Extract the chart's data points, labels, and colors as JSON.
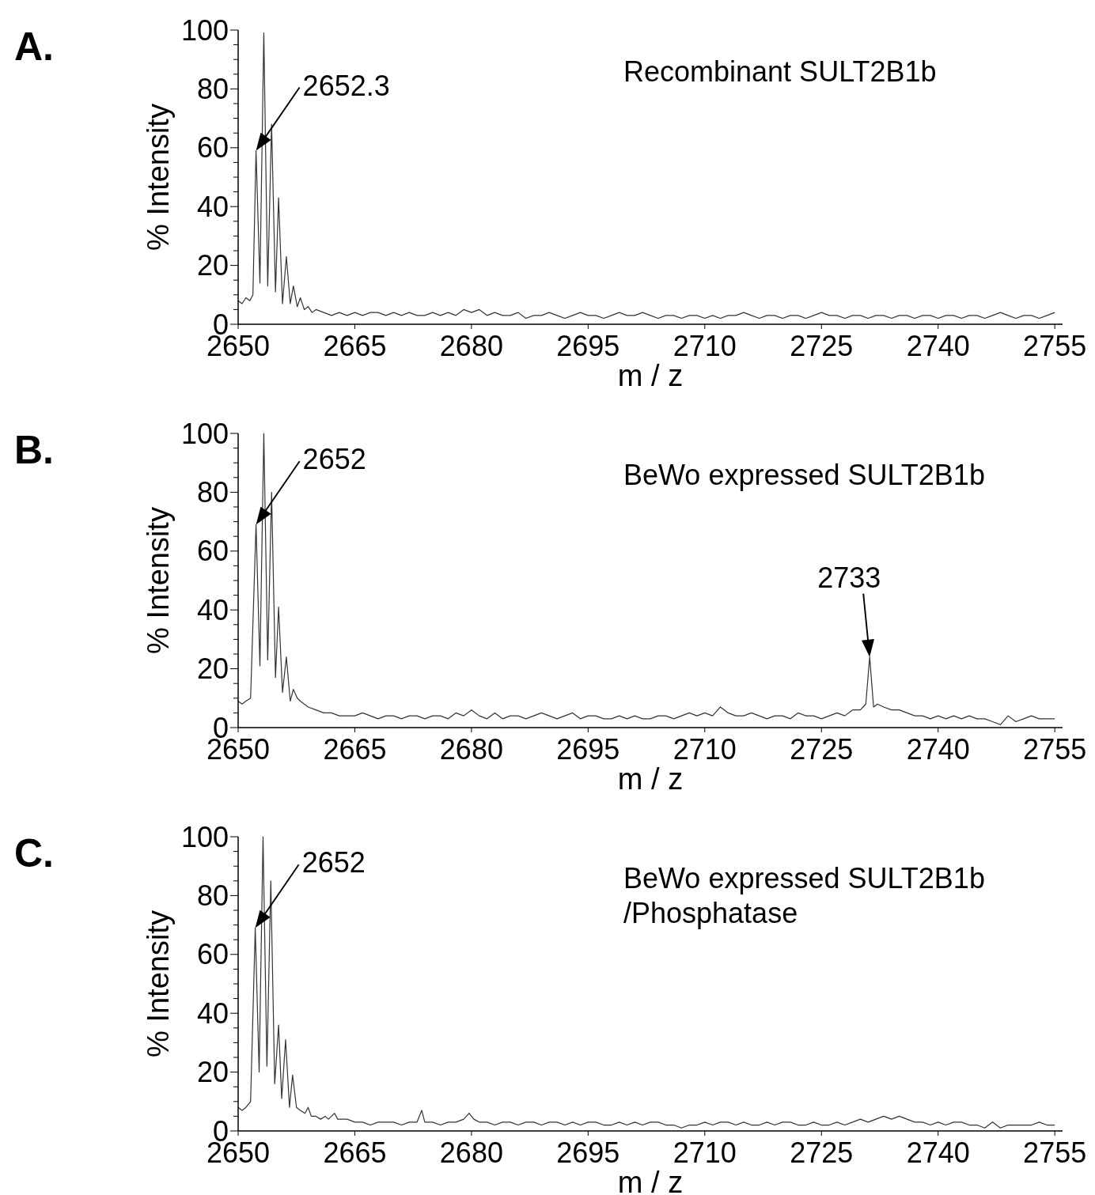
{
  "chart_data": [
    {
      "type": "line",
      "title": "A.",
      "subtitle": "Recombinant SULT2B1b",
      "xlabel": "m / z",
      "ylabel": "% Intensity",
      "xlim": [
        2650,
        2756
      ],
      "ylim": [
        0,
        100
      ],
      "xticks": [
        2650,
        2665,
        2680,
        2695,
        2710,
        2725,
        2740,
        2755
      ],
      "yticks": [
        0,
        {
          "value": 5,
          "label": null
        },
        {
          "value": 10,
          "label": null
        },
        {
          "value": 15,
          "label": null
        },
        20,
        {
          "value": 25,
          "label": null
        },
        {
          "value": 30,
          "label": null
        },
        {
          "value": 35,
          "label": null
        },
        40,
        {
          "value": 45,
          "label": null
        },
        {
          "value": 50,
          "label": null
        },
        {
          "value": 55,
          "label": null
        },
        60,
        {
          "value": 65,
          "label": null
        },
        {
          "value": 70,
          "label": null
        },
        {
          "value": 75,
          "label": null
        },
        80,
        {
          "value": 85,
          "label": null
        },
        {
          "value": 90,
          "label": null
        },
        {
          "value": 95,
          "label": null
        },
        100
      ],
      "annotations": [
        {
          "text": "2652.3",
          "x": 2652.3,
          "y": 59
        }
      ],
      "series": [
        {
          "color": "#333333",
          "x": [
            2650,
            2650.5,
            2651,
            2651.5,
            2651.9,
            2652.3,
            2652.8,
            2653.3,
            2653.8,
            2654.3,
            2654.8,
            2655.2,
            2655.7,
            2656.2,
            2656.7,
            2657.1,
            2657.6,
            2658,
            2658.5,
            2659,
            2659.5,
            2660,
            2661,
            2662,
            2663,
            2664,
            2665,
            2666,
            2667,
            2668,
            2669,
            2670,
            2671,
            2672,
            2673,
            2674,
            2675,
            2676,
            2677,
            2678,
            2679,
            2680,
            2681,
            2682,
            2683,
            2684,
            2685,
            2686,
            2687,
            2688,
            2689,
            2690,
            2691,
            2692,
            2693,
            2694,
            2695,
            2696,
            2697,
            2698,
            2699,
            2700,
            2701,
            2702,
            2703,
            2704,
            2705,
            2706,
            2707,
            2708,
            2709,
            2710,
            2711,
            2712,
            2713,
            2714,
            2715,
            2716,
            2717,
            2718,
            2719,
            2720,
            2721,
            2722,
            2723,
            2724,
            2725,
            2726,
            2727,
            2728,
            2729,
            2730,
            2731,
            2732,
            2733,
            2734,
            2735,
            2736,
            2737,
            2738,
            2739,
            2740,
            2741,
            2742,
            2743,
            2744,
            2745,
            2746,
            2747,
            2748,
            2749,
            2750,
            2751,
            2752,
            2753,
            2754,
            2755
          ],
          "values": [
            8,
            7,
            9,
            8,
            10,
            59,
            14,
            99,
            13,
            68,
            11,
            43,
            7,
            23,
            7,
            13,
            6,
            9,
            5,
            6,
            4,
            5,
            4,
            3,
            4,
            3,
            4,
            3,
            4,
            4,
            3,
            4,
            3,
            4,
            3,
            3,
            4,
            3,
            4,
            3,
            5,
            4,
            5,
            3,
            4,
            3,
            3,
            4,
            2,
            3,
            3,
            4,
            3,
            2,
            3,
            4,
            3,
            3,
            2,
            3,
            4,
            3,
            3,
            4,
            3,
            2,
            3,
            3,
            2,
            3,
            3,
            2,
            3,
            2,
            3,
            3,
            4,
            3,
            2,
            3,
            3,
            2,
            3,
            3,
            2,
            3,
            4,
            3,
            3,
            2,
            3,
            3,
            2,
            3,
            3,
            2,
            3,
            3,
            2,
            3,
            3,
            2,
            3,
            3,
            2,
            3,
            3,
            2,
            3,
            4,
            3,
            2,
            3,
            3,
            2,
            3,
            4
          ]
        }
      ]
    },
    {
      "type": "line",
      "title": "B.",
      "subtitle": "BeWo expressed SULT2B1b",
      "xlabel": "m / z",
      "ylabel": "% Intensity",
      "xlim": [
        2650,
        2756
      ],
      "ylim": [
        0,
        100
      ],
      "xticks": [
        2650,
        2665,
        2680,
        2695,
        2710,
        2725,
        2740,
        2755
      ],
      "yticks": [
        0,
        {
          "value": 5,
          "label": null
        },
        {
          "value": 10,
          "label": null
        },
        {
          "value": 15,
          "label": null
        },
        20,
        {
          "value": 25,
          "label": null
        },
        {
          "value": 30,
          "label": null
        },
        {
          "value": 35,
          "label": null
        },
        40,
        {
          "value": 45,
          "label": null
        },
        {
          "value": 50,
          "label": null
        },
        {
          "value": 55,
          "label": null
        },
        60,
        {
          "value": 65,
          "label": null
        },
        {
          "value": 70,
          "label": null
        },
        {
          "value": 75,
          "label": null
        },
        80,
        {
          "value": 85,
          "label": null
        },
        {
          "value": 90,
          "label": null
        },
        {
          "value": 95,
          "label": null
        },
        100
      ],
      "annotations": [
        {
          "text": "2652",
          "x": 2652.3,
          "y": 69
        },
        {
          "text": "2733",
          "x": 2731.2,
          "y": 24
        }
      ],
      "series": [
        {
          "color": "#333333",
          "x": [
            2650,
            2650.5,
            2651,
            2651.6,
            2652.3,
            2652.8,
            2653.3,
            2653.8,
            2654.3,
            2654.8,
            2655.2,
            2655.7,
            2656.2,
            2656.7,
            2657.1,
            2657.6,
            2658,
            2659,
            2660,
            2661,
            2662,
            2663,
            2664,
            2665,
            2666,
            2667,
            2668,
            2669,
            2670,
            2671,
            2672,
            2673,
            2674,
            2675,
            2676,
            2677,
            2678,
            2679,
            2680,
            2681,
            2682,
            2683,
            2684,
            2685,
            2686,
            2687,
            2688,
            2689,
            2690,
            2691,
            2692,
            2693,
            2694,
            2695,
            2696,
            2697,
            2698,
            2699,
            2700,
            2701,
            2702,
            2703,
            2704,
            2705,
            2706,
            2707,
            2708,
            2709,
            2710,
            2711,
            2712,
            2713,
            2714,
            2715,
            2716,
            2717,
            2718,
            2719,
            2720,
            2721,
            2722,
            2723,
            2724,
            2725,
            2726,
            2727,
            2728,
            2729,
            2730,
            2730.7,
            2731.2,
            2731.7,
            2732.2,
            2733,
            2734,
            2735,
            2736,
            2737,
            2738,
            2739,
            2740,
            2741,
            2742,
            2743,
            2744,
            2745,
            2746,
            2747,
            2748,
            2749,
            2750,
            2751,
            2752,
            2753,
            2754,
            2755
          ],
          "values": [
            9,
            8,
            9,
            10,
            69,
            21,
            100,
            23,
            80,
            17,
            41,
            12,
            24,
            9,
            13,
            10,
            9,
            7,
            6,
            5,
            5,
            4,
            4,
            4,
            5,
            4,
            3,
            4,
            4,
            3,
            4,
            4,
            3,
            4,
            4,
            3,
            5,
            4,
            6,
            4,
            3,
            5,
            3,
            4,
            4,
            3,
            4,
            5,
            4,
            3,
            4,
            5,
            3,
            4,
            4,
            3,
            3,
            4,
            3,
            4,
            3,
            3,
            4,
            4,
            3,
            4,
            5,
            4,
            5,
            4,
            7,
            5,
            4,
            4,
            5,
            4,
            3,
            4,
            4,
            3,
            5,
            4,
            4,
            3,
            4,
            5,
            4,
            6,
            6,
            8,
            24,
            7,
            8,
            7,
            6,
            6,
            5,
            4,
            4,
            3,
            4,
            3,
            4,
            3,
            4,
            3,
            3,
            2,
            1,
            4,
            2,
            3,
            4,
            3,
            3,
            3
          ]
        }
      ]
    },
    {
      "type": "line",
      "title": "C.",
      "subtitle": "BeWo expressed SULT2B1b\n/Phosphatase",
      "xlabel": "m / z",
      "ylabel": "% Intensity",
      "xlim": [
        2650,
        2756
      ],
      "ylim": [
        0,
        100
      ],
      "xticks": [
        2650,
        2665,
        2680,
        2695,
        2710,
        2725,
        2740,
        2755
      ],
      "yticks": [
        0,
        {
          "value": 5,
          "label": null
        },
        {
          "value": 10,
          "label": null
        },
        {
          "value": 15,
          "label": null
        },
        20,
        {
          "value": 25,
          "label": null
        },
        {
          "value": 30,
          "label": null
        },
        {
          "value": 35,
          "label": null
        },
        40,
        {
          "value": 45,
          "label": null
        },
        {
          "value": 50,
          "label": null
        },
        {
          "value": 55,
          "label": null
        },
        60,
        {
          "value": 65,
          "label": null
        },
        {
          "value": 70,
          "label": null
        },
        {
          "value": 75,
          "label": null
        },
        80,
        {
          "value": 85,
          "label": null
        },
        {
          "value": 90,
          "label": null
        },
        {
          "value": 95,
          "label": null
        },
        100
      ],
      "annotations": [
        {
          "text": "2652",
          "x": 2652.2,
          "y": 69
        }
      ],
      "series": [
        {
          "color": "#333333",
          "x": [
            2650,
            2650.5,
            2651,
            2651.6,
            2652.2,
            2652.7,
            2653.2,
            2653.7,
            2654.2,
            2654.7,
            2655.2,
            2655.6,
            2656.1,
            2656.6,
            2657,
            2657.5,
            2658,
            2658.6,
            2659,
            2659.4,
            2660,
            2660.6,
            2661.2,
            2661.6,
            2662.4,
            2662.8,
            2664,
            2665,
            2666,
            2667,
            2668,
            2669,
            2670,
            2671,
            2672,
            2673,
            2673.6,
            2674,
            2675,
            2676,
            2677,
            2678,
            2679,
            2679.7,
            2680.3,
            2681,
            2682,
            2683,
            2684,
            2685,
            2686,
            2687,
            2688,
            2689,
            2690,
            2691,
            2692,
            2693,
            2694,
            2695,
            2696,
            2697,
            2698,
            2699,
            2700,
            2701,
            2702,
            2703,
            2704,
            2705,
            2706,
            2707,
            2708,
            2709,
            2710,
            2711,
            2712,
            2713,
            2714,
            2715,
            2716,
            2717,
            2718,
            2719,
            2720,
            2721,
            2722,
            2723,
            2724,
            2725,
            2726,
            2727,
            2728,
            2729,
            2730,
            2731,
            2732,
            2733,
            2734,
            2735,
            2736,
            2737,
            2738,
            2739,
            2740,
            2741,
            2742,
            2743,
            2744,
            2745,
            2746,
            2747,
            2748,
            2749,
            2750,
            2751,
            2752,
            2753,
            2754,
            2755
          ],
          "values": [
            8,
            7,
            8,
            10,
            69,
            20,
            100,
            22,
            85,
            16,
            36,
            11,
            31,
            8,
            19,
            8,
            7,
            6,
            8,
            5,
            5,
            4,
            5,
            4,
            6,
            4,
            4,
            3,
            3,
            2,
            3,
            3,
            3,
            2,
            3,
            3,
            7,
            3,
            3,
            2,
            3,
            3,
            4,
            6,
            4,
            3,
            3,
            2,
            3,
            3,
            2,
            3,
            3,
            2,
            3,
            3,
            2,
            3,
            2,
            3,
            3,
            2,
            2,
            3,
            2,
            3,
            2,
            3,
            3,
            2,
            2,
            1,
            2,
            2,
            3,
            2,
            3,
            3,
            2,
            3,
            2,
            2,
            3,
            2,
            3,
            3,
            2,
            2,
            3,
            2,
            2,
            3,
            2,
            3,
            4,
            3,
            4,
            5,
            4,
            5,
            4,
            3,
            3,
            2,
            3,
            2,
            3,
            3,
            2,
            2,
            1,
            3,
            1,
            2,
            2,
            2,
            2,
            3,
            2,
            2
          ]
        }
      ]
    }
  ]
}
